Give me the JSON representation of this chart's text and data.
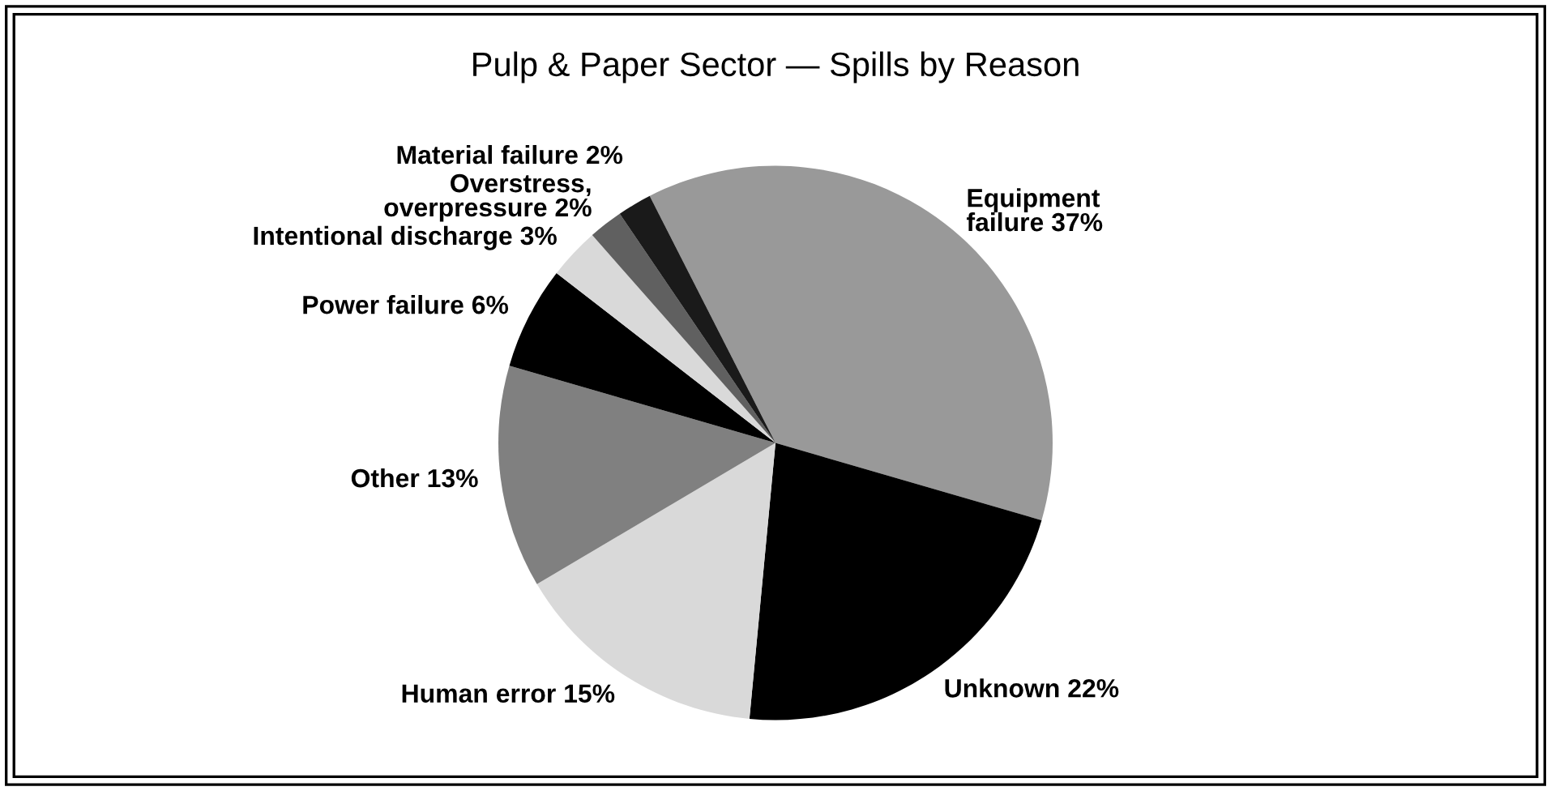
{
  "chart_data": {
    "type": "pie",
    "title": "Pulp & Paper Sector — Spills by Reason",
    "categories": [
      "Equipment\nfailure",
      "Unknown",
      "Human error",
      "Other",
      "Power failure",
      "Intentional discharge",
      "Overstress,\noverpressure",
      "Material failure"
    ],
    "values": [
      37,
      22,
      15,
      13,
      6,
      3,
      2,
      2
    ],
    "value_labels": [
      "37%",
      "22%",
      "15%",
      "13%",
      "6%",
      "3%",
      "2%",
      "2%"
    ],
    "colors": [
      "#999999",
      "#000000",
      "#d9d9d9",
      "#808080",
      "#000000",
      "#d9d9d9",
      "#606060",
      "#1a1a1a"
    ],
    "legend": false
  }
}
